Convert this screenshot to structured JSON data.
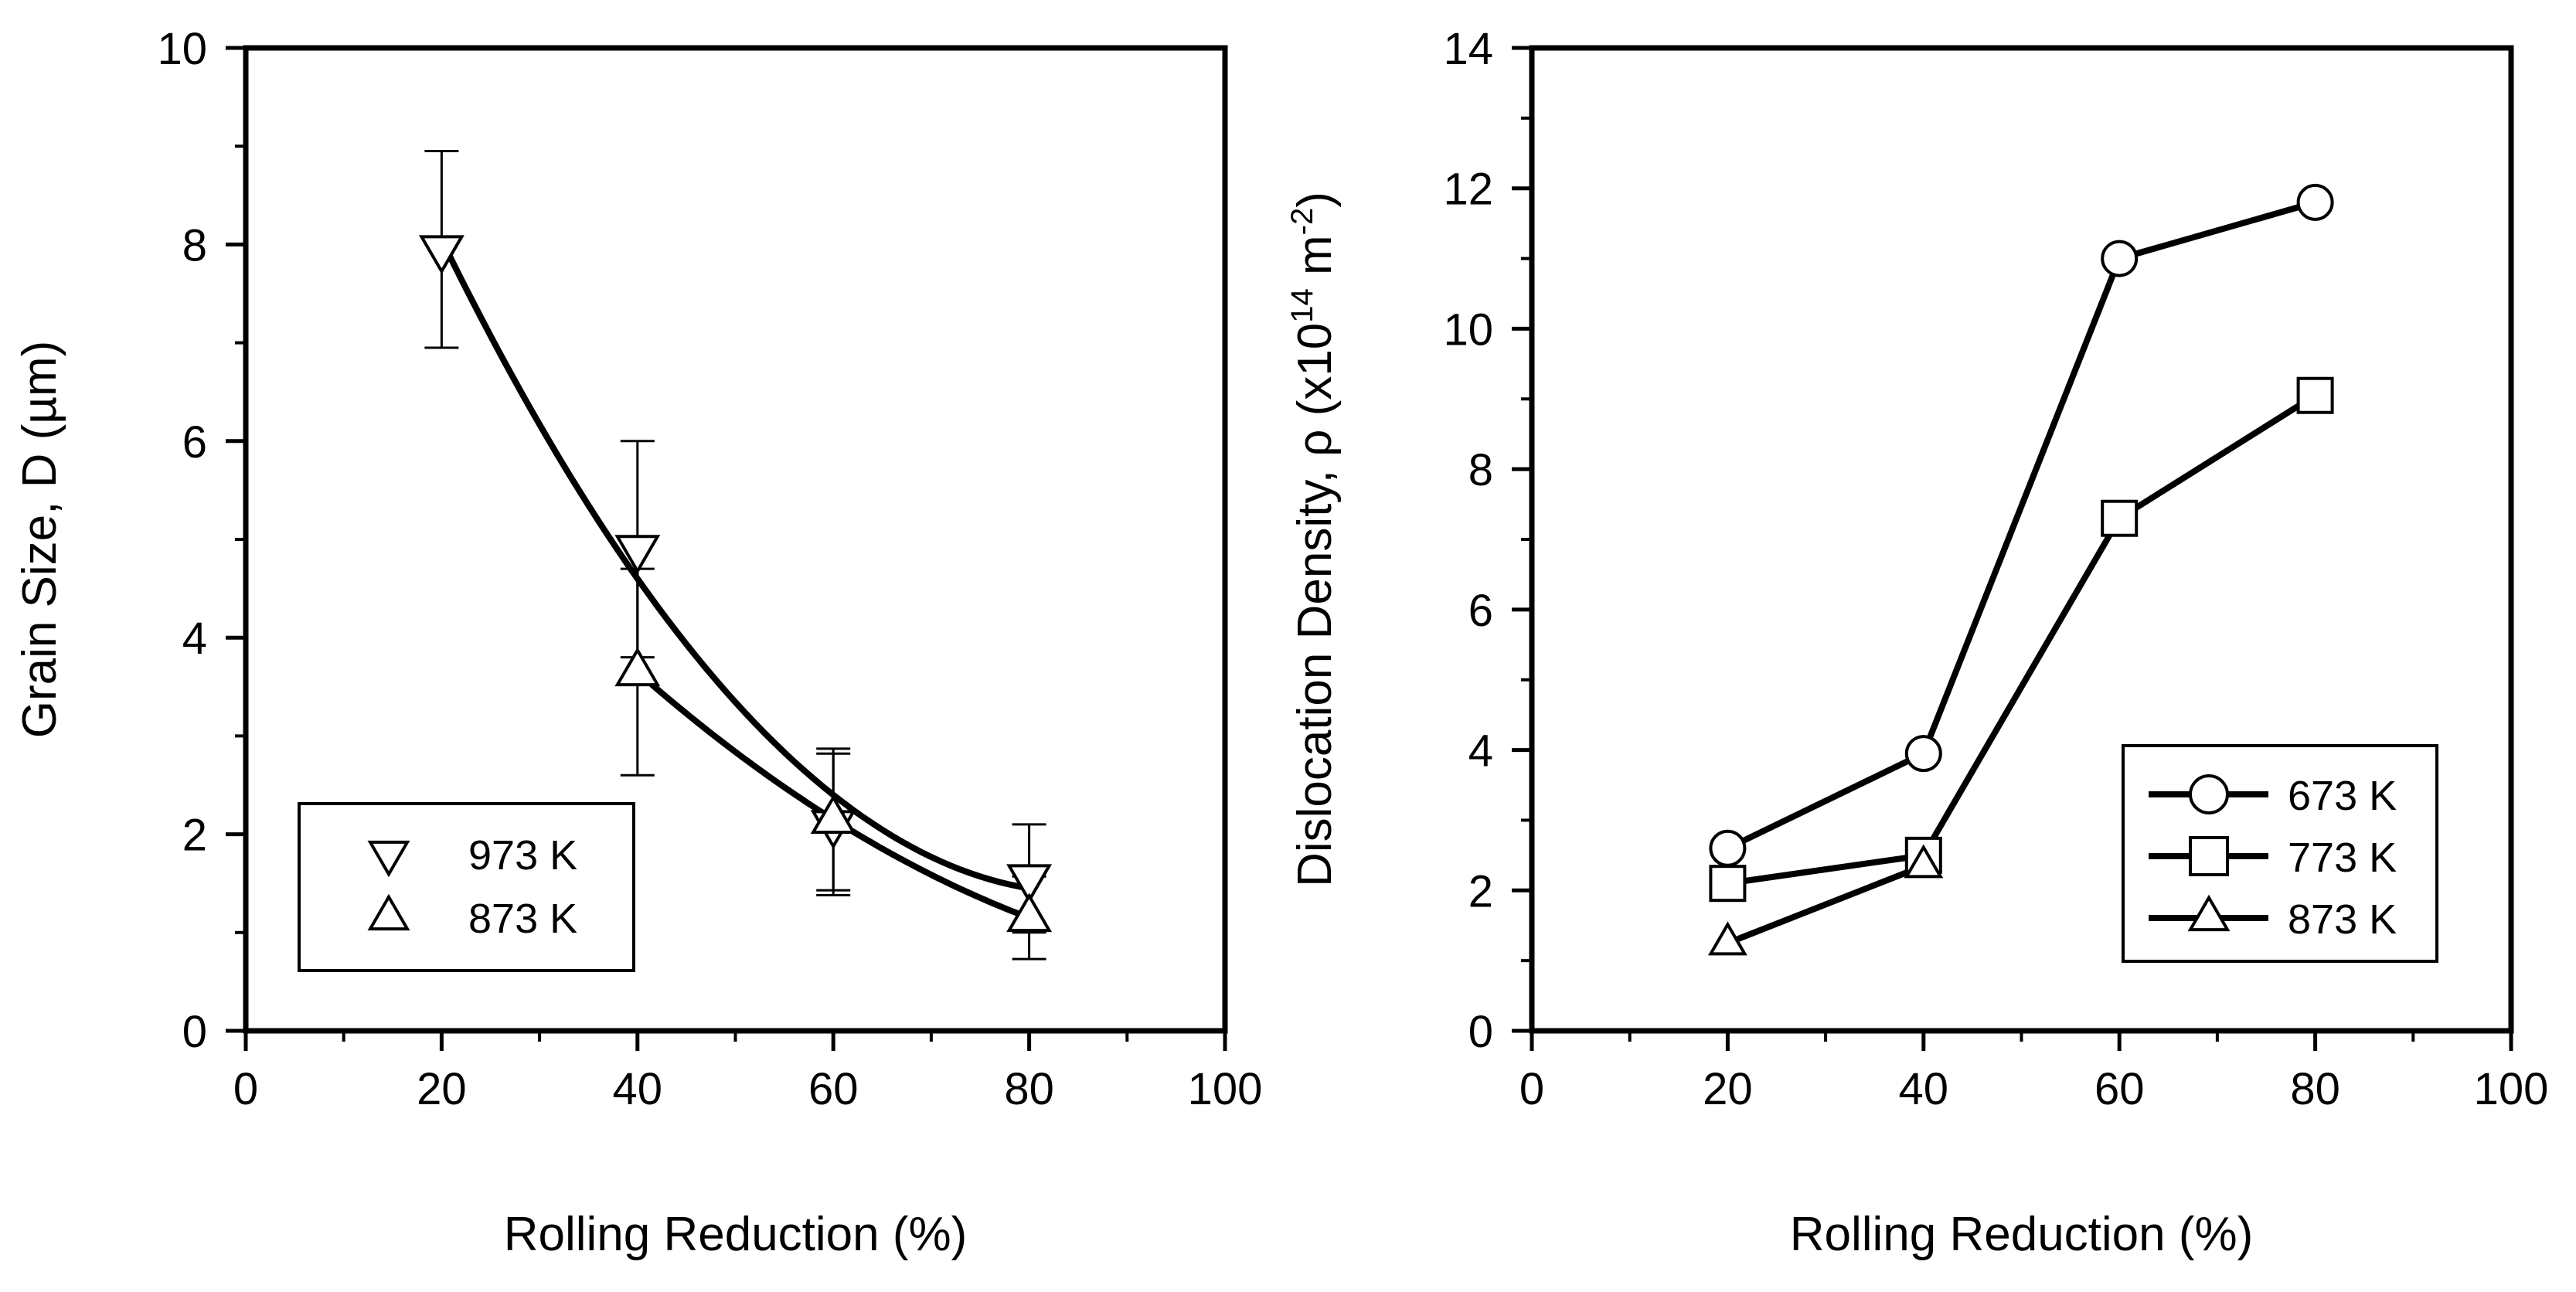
{
  "chart_data": [
    {
      "type": "scatter",
      "title": "",
      "xlabel": "Rolling Reduction (%)",
      "ylabel": "Grain Size, D (µm)",
      "xlim": [
        0,
        100
      ],
      "ylim": [
        0,
        10
      ],
      "xticks": [
        "0",
        "20",
        "40",
        "60",
        "80",
        "100"
      ],
      "yticks": [
        "0",
        "2",
        "4",
        "6",
        "8",
        "10"
      ],
      "legend_position": "lower-left",
      "series": [
        {
          "name": "973 K",
          "marker": "triangle-down",
          "x": [
            20,
            40,
            60,
            80
          ],
          "y": [
            7.95,
            4.9,
            2.1,
            1.55
          ],
          "yerr": [
            1.0,
            1.1,
            0.72,
            0.55
          ],
          "fit_curve": true
        },
        {
          "name": "873 K",
          "marker": "triangle-up",
          "x": [
            40,
            60,
            80
          ],
          "y": [
            3.65,
            2.15,
            1.15
          ],
          "yerr": [
            1.05,
            0.72,
            0.42
          ],
          "fit_curve": true
        }
      ]
    },
    {
      "type": "line",
      "title": "",
      "xlabel": "Rolling Reduction (%)",
      "ylabel_main": "Dislocation Density, ρ (x10",
      "ylabel_exp1": "14",
      "ylabel_unit": " m",
      "ylabel_exp2": "-2",
      "ylabel_close": ")",
      "xlim": [
        0,
        100
      ],
      "ylim": [
        0,
        14
      ],
      "xticks": [
        "0",
        "20",
        "40",
        "60",
        "80",
        "100"
      ],
      "yticks": [
        "0",
        "2",
        "4",
        "6",
        "8",
        "10",
        "12",
        "14"
      ],
      "legend_position": "lower-right",
      "series": [
        {
          "name": "673 K",
          "marker": "circle",
          "x": [
            20,
            40,
            60,
            80
          ],
          "y": [
            2.6,
            3.95,
            11.0,
            11.8
          ]
        },
        {
          "name": "773 K",
          "marker": "square",
          "x": [
            20,
            40,
            60,
            80
          ],
          "y": [
            2.1,
            2.5,
            7.3,
            9.05
          ]
        },
        {
          "name": "873 K",
          "marker": "triangle-up",
          "x": [
            20,
            40
          ],
          "y": [
            1.25,
            2.35
          ]
        }
      ]
    }
  ]
}
